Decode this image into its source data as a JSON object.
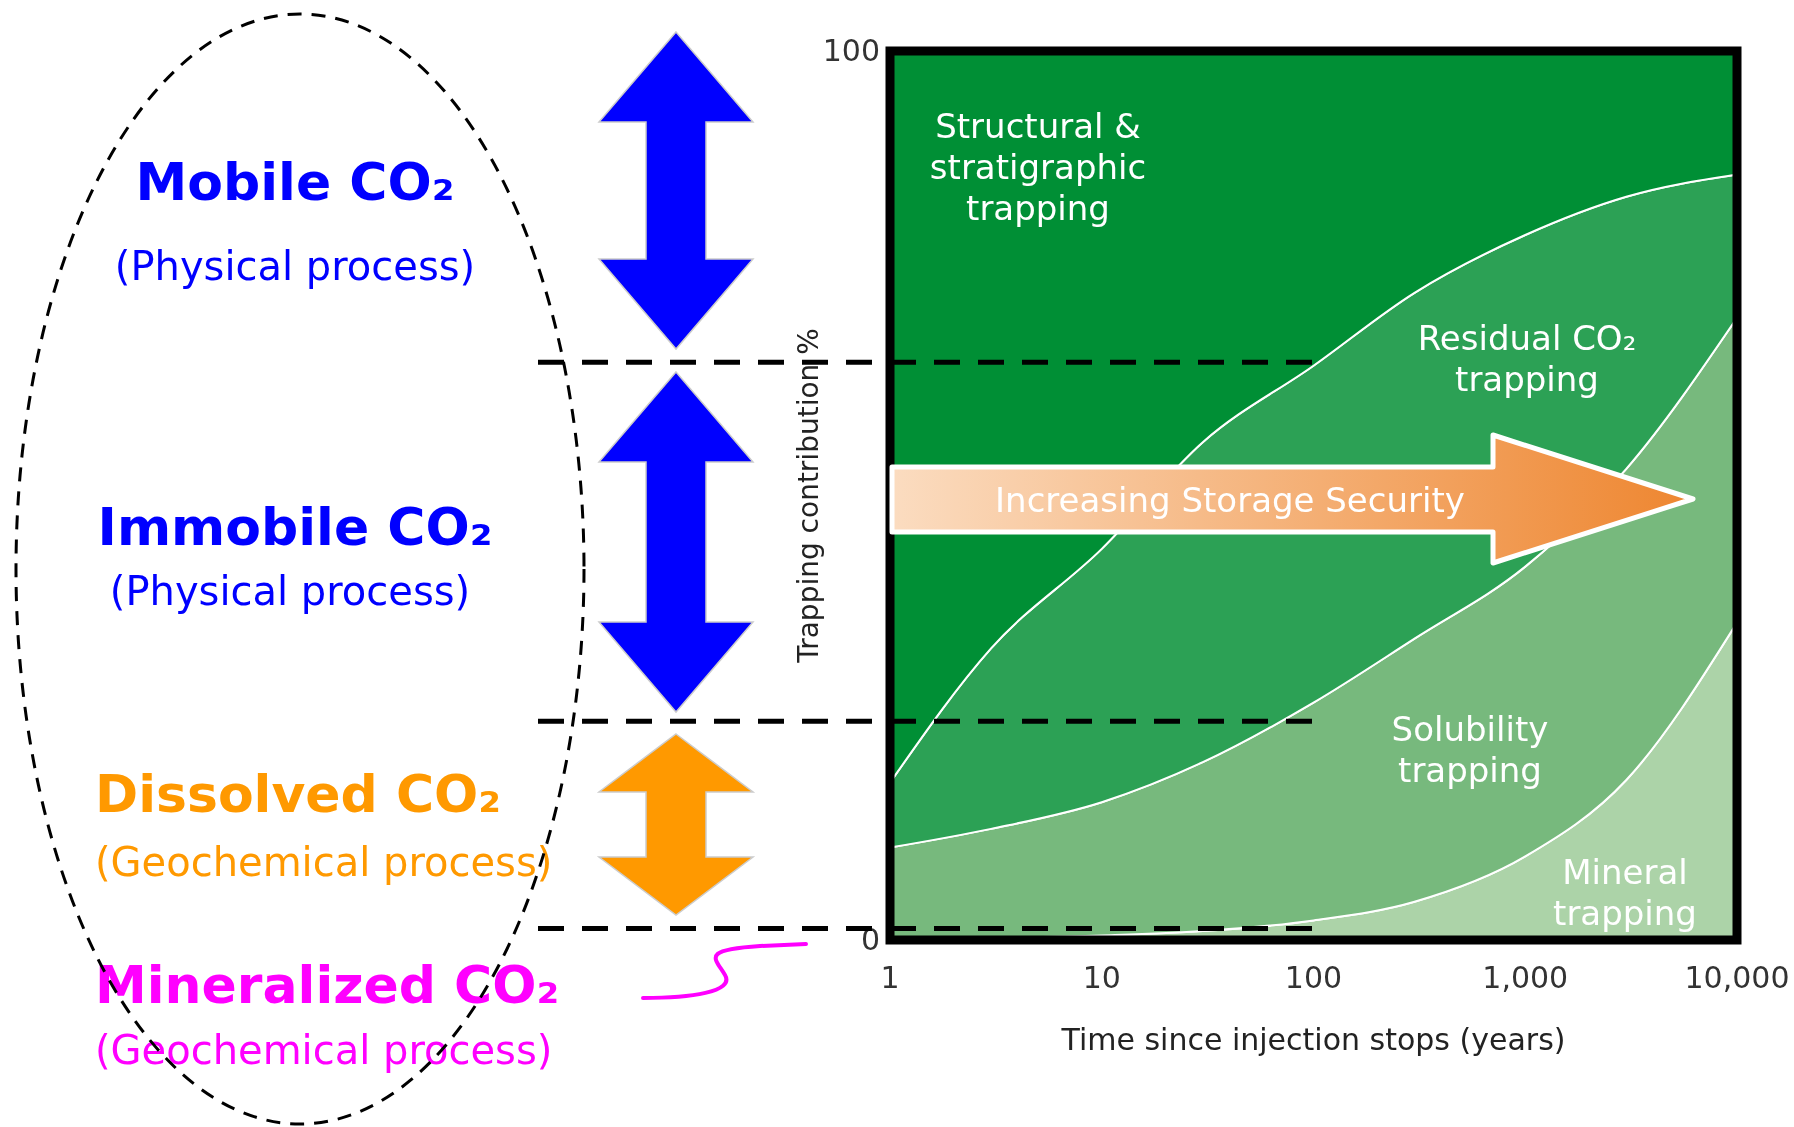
{
  "chart_data": {
    "type": "area",
    "stacked": true,
    "log": "x",
    "x": [
      1,
      3,
      10,
      30,
      100,
      300,
      1000,
      3000,
      10000
    ],
    "xlim": [
      1,
      10000
    ],
    "xticks": [
      1,
      10,
      100,
      {
        "value": 1000,
        "label": "1,000"
      },
      {
        "value": 10000,
        "label": "10,000"
      }
    ],
    "ylim": [
      0,
      100
    ],
    "yticks": [
      0,
      100
    ],
    "xlabel": "Time since injection stops (years)",
    "ylabel": "Trapping contribution %",
    "series": [
      {
        "name": "Mineral trapping",
        "color": "#acd3a8",
        "values": [
          0,
          0.2,
          0.5,
          1,
          2.2,
          4.3,
          9.4,
          18,
          35.7
        ]
      },
      {
        "name": "Solubility trapping",
        "color": "#77b97d",
        "values": [
          10.4,
          12.3,
          15,
          19,
          24.5,
          29.6,
          32.6,
          35,
          34.3
        ]
      },
      {
        "name": "Residual CO₂ trapping",
        "color": "#2ca155",
        "values": [
          7.3,
          20.3,
          28.5,
          36,
          37.9,
          38.9,
          37.3,
          30.6,
          16.1
        ]
      },
      {
        "name": "Structural & stratigraphic trapping",
        "color": "#008f35",
        "values": [
          82.3,
          67.2,
          56,
          44,
          35.4,
          27.2,
          20.7,
          16.4,
          13.9
        ]
      }
    ],
    "ref_lines": [
      {
        "axis": "y",
        "value": 65,
        "line_style": "dashed"
      },
      {
        "axis": "y",
        "value": 24.6,
        "line_style": "dashed"
      },
      {
        "axis": "y",
        "value": 1.3,
        "line_style": "dashed"
      }
    ],
    "annotations": [
      "Mobile CO₂",
      "(Physical process)",
      "Immobile CO₂",
      "(Physical process)",
      "Dissolved CO₂",
      "(Geochemical process)",
      "Mineralized CO₂",
      "(Geochemical process)",
      "Increasing Storage Security"
    ]
  }
}
